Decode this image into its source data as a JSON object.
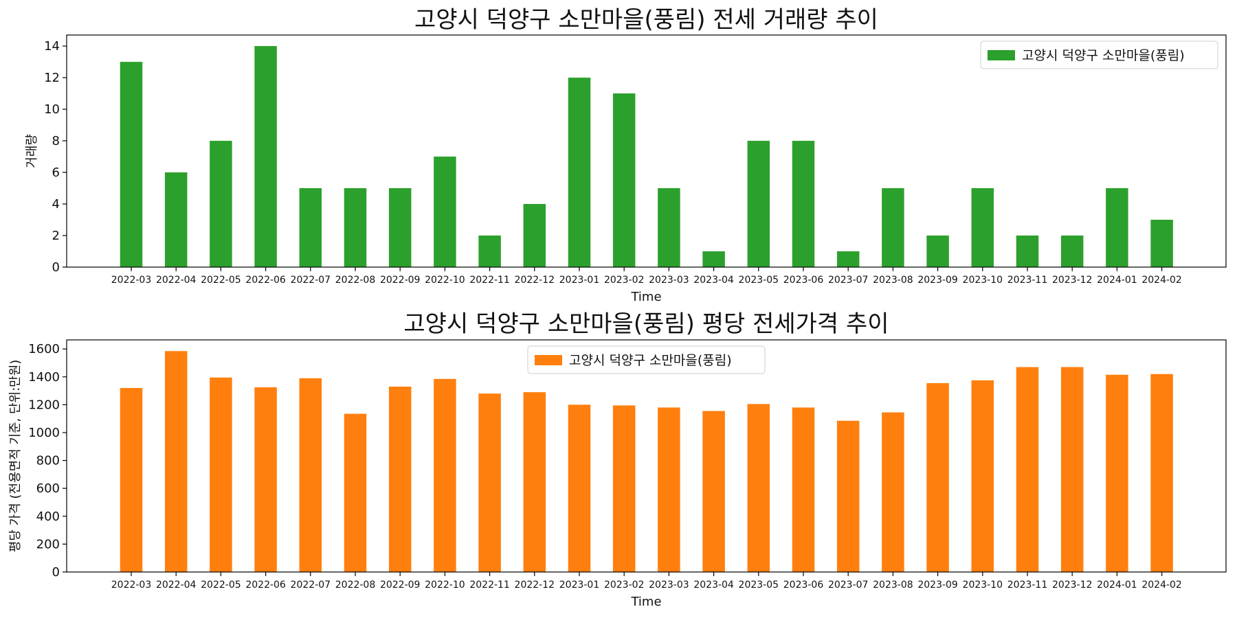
{
  "chart_data": [
    {
      "type": "bar",
      "title": "고양시 덕양구 소만마을(풍림) 전세 거래량 추이",
      "xlabel": "Time",
      "ylabel": "거래량",
      "ylim": [
        0,
        14.7
      ],
      "yticks": [
        0,
        2,
        4,
        6,
        8,
        10,
        12,
        14
      ],
      "legend_position": "top-right",
      "color": "#2ca02c",
      "categories": [
        "2022-03",
        "2022-04",
        "2022-05",
        "2022-06",
        "2022-07",
        "2022-08",
        "2022-09",
        "2022-10",
        "2022-11",
        "2022-12",
        "2023-01",
        "2023-02",
        "2023-03",
        "2023-04",
        "2023-05",
        "2023-06",
        "2023-07",
        "2023-08",
        "2023-09",
        "2023-10",
        "2023-11",
        "2023-12",
        "2024-01",
        "2024-02"
      ],
      "series": [
        {
          "name": "고양시 덕양구 소만마을(풍림)",
          "values": [
            13,
            6,
            8,
            14,
            5,
            5,
            5,
            7,
            2,
            4,
            12,
            11,
            5,
            1,
            8,
            8,
            1,
            5,
            2,
            5,
            2,
            2,
            5,
            3
          ]
        }
      ]
    },
    {
      "type": "bar",
      "title": "고양시 덕양구 소만마을(풍림) 평당 전세가격 추이",
      "xlabel": "Time",
      "ylabel": "평당 가격 (전용면적 기준, 단위:만원)",
      "ylim": [
        0,
        1665
      ],
      "yticks": [
        0,
        200,
        400,
        600,
        800,
        1000,
        1200,
        1400,
        1600
      ],
      "legend_position": "top-center",
      "color": "#ff7f0e",
      "categories": [
        "2022-03",
        "2022-04",
        "2022-05",
        "2022-06",
        "2022-07",
        "2022-08",
        "2022-09",
        "2022-10",
        "2022-11",
        "2022-12",
        "2023-01",
        "2023-02",
        "2023-03",
        "2023-04",
        "2023-05",
        "2023-06",
        "2023-07",
        "2023-08",
        "2023-09",
        "2023-10",
        "2023-11",
        "2023-12",
        "2024-01",
        "2024-02"
      ],
      "series": [
        {
          "name": "고양시 덕양구 소만마을(풍림)",
          "values": [
            1320,
            1585,
            1395,
            1325,
            1390,
            1135,
            1330,
            1385,
            1280,
            1290,
            1200,
            1195,
            1180,
            1155,
            1205,
            1180,
            1085,
            1145,
            1355,
            1375,
            1470,
            1470,
            1415,
            1420
          ]
        }
      ]
    }
  ]
}
